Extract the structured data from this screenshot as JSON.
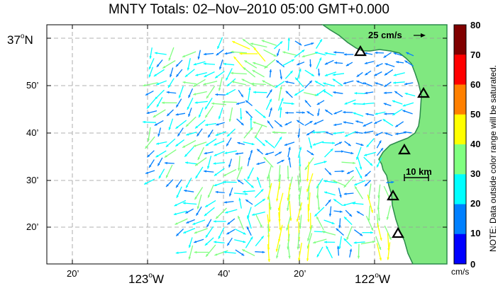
{
  "title": "MNTY Totals: 02–Nov–2010 05:00 GMT+0.000",
  "lat_labels": [
    {
      "deg": "37",
      "sup": "o",
      "hem": "N"
    },
    {
      "text": "50’"
    },
    {
      "text": "40’"
    },
    {
      "text": "30’"
    },
    {
      "text": "20’"
    }
  ],
  "lon_labels": [
    {
      "text": "20’"
    },
    {
      "deg": "123",
      "sup": "o",
      "hem": "W"
    },
    {
      "text": "40’"
    },
    {
      "text": "20’"
    },
    {
      "deg": "122",
      "sup": "o",
      "hem": "W"
    }
  ],
  "scale_arrow_label": "25 cm/s",
  "scale_bar_label": "10 km",
  "colorbar": {
    "ticks": [
      "80",
      "70",
      "60",
      "50",
      "40",
      "30",
      "20",
      "10",
      "0"
    ],
    "unit": "cm/s",
    "colors": [
      "#800000",
      "#ff0000",
      "#ff8000",
      "#ffff00",
      "#80ff80",
      "#00ffff",
      "#0080ff",
      "#0000ff"
    ]
  },
  "note": "NOTE: Data outside color range will be saturated.",
  "colors": {
    "land": "#80e880",
    "coast": "#2a8a4a",
    "grid": "#999999",
    "station_edge": "#000000"
  }
}
